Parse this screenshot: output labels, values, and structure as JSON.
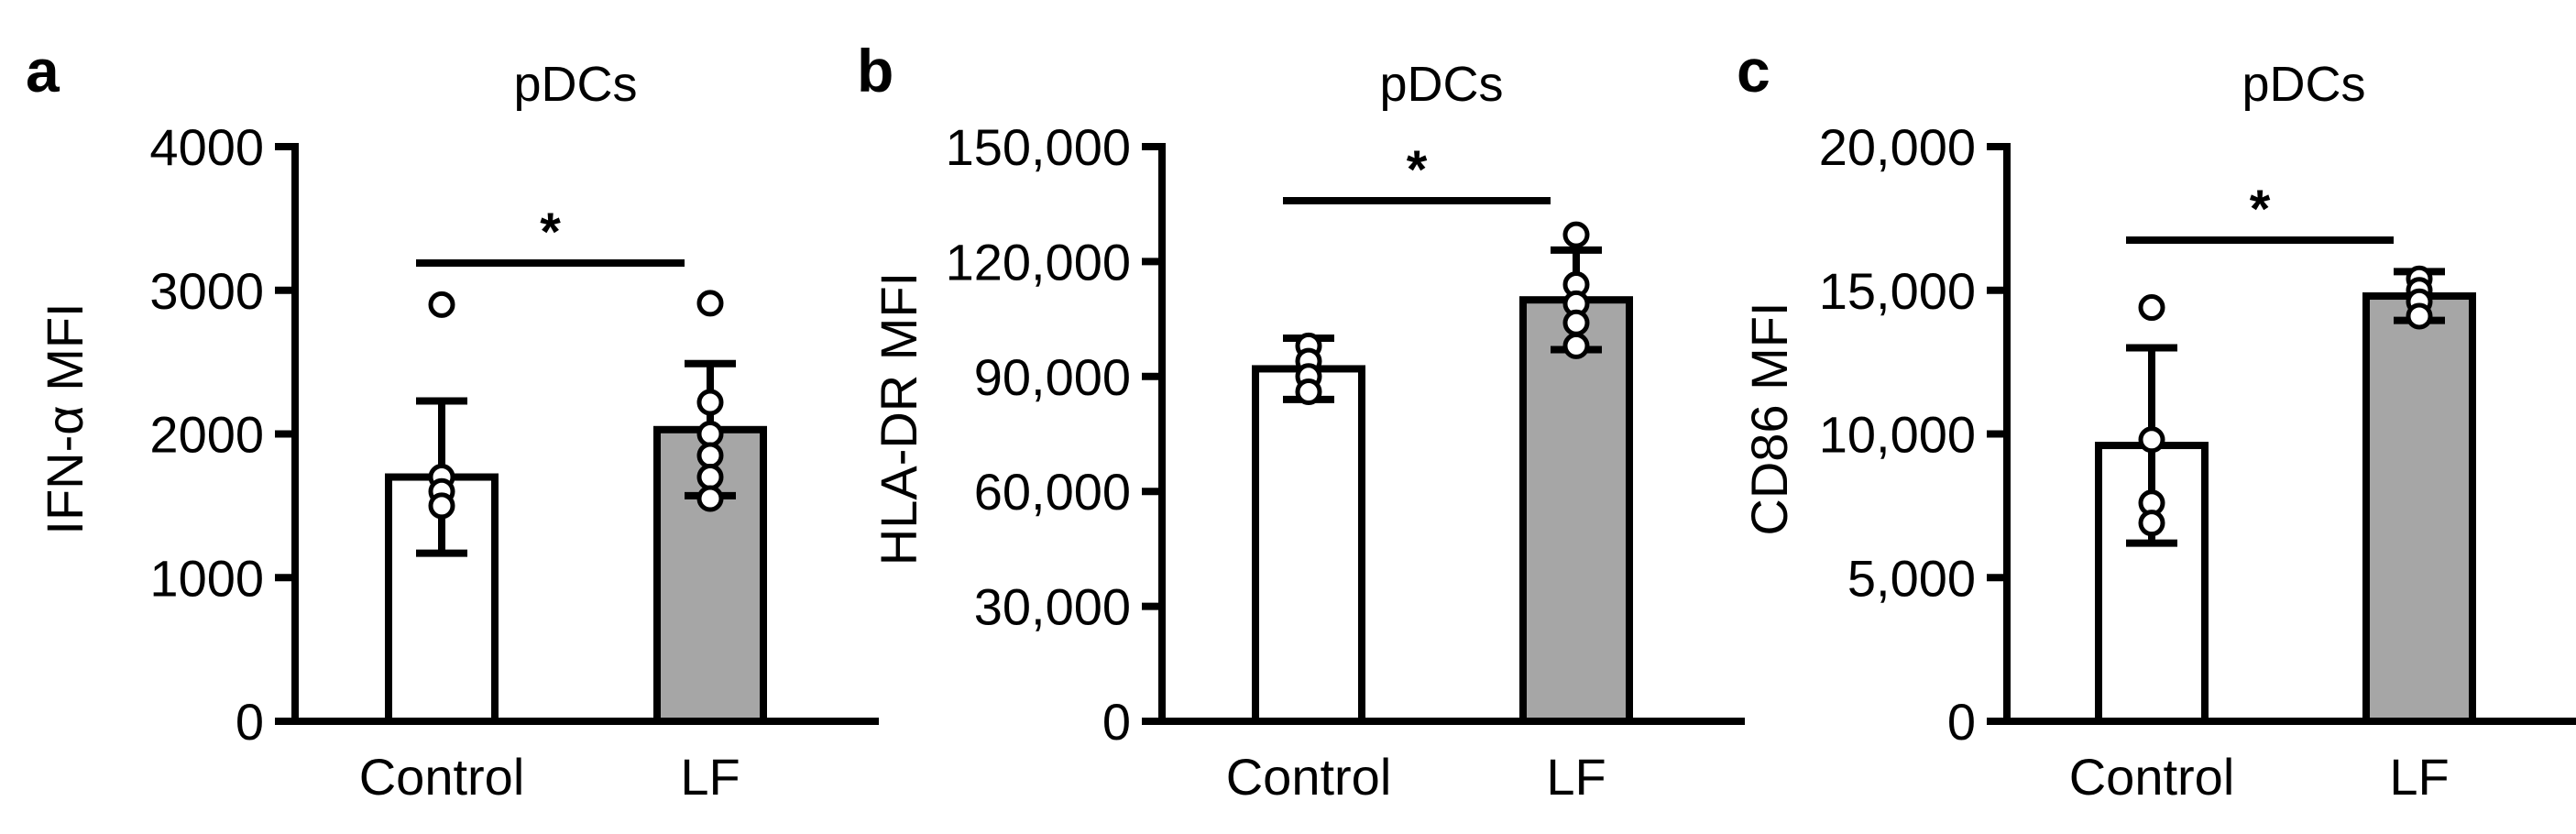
{
  "chart_data": [
    {
      "type": "bar",
      "panel_label": "a",
      "title": "pDCs",
      "ylabel": "IFN-α MFI",
      "categories": [
        "Control",
        "LF"
      ],
      "values": [
        1700,
        2030
      ],
      "errors": [
        530,
        460
      ],
      "points": [
        [
          2900,
          1700,
          1600,
          1500
        ],
        [
          2910,
          2220,
          2000,
          1850,
          1700,
          1550
        ]
      ],
      "bar_colors": [
        "#ffffff",
        "#a6a6a6"
      ],
      "ylim": [
        0,
        4000
      ],
      "yticks": [
        0,
        1000,
        2000,
        3000,
        4000
      ],
      "ytick_labels": [
        "0",
        "1000",
        "2000",
        "3000",
        "4000"
      ],
      "significance": "*"
    },
    {
      "type": "bar",
      "panel_label": "b",
      "title": "pDCs",
      "ylabel": "HLA-DR MFI",
      "categories": [
        "Control",
        "LF"
      ],
      "values": [
        92000,
        110000
      ],
      "errors": [
        8000,
        13000
      ],
      "points": [
        [
          98000,
          94000,
          90000,
          86000
        ],
        [
          127000,
          114000,
          109000,
          104000,
          98000
        ]
      ],
      "bar_colors": [
        "#ffffff",
        "#a6a6a6"
      ],
      "ylim": [
        0,
        150000
      ],
      "yticks": [
        0,
        30000,
        60000,
        90000,
        120000,
        150000
      ],
      "ytick_labels": [
        "0",
        "30,000",
        "60,000",
        "90,000",
        "120,000",
        "150,000"
      ],
      "significance": "*"
    },
    {
      "type": "bar",
      "panel_label": "c",
      "title": "pDCs",
      "ylabel": "CD86 MFI",
      "categories": [
        "Control",
        "LF"
      ],
      "values": [
        9600,
        14800
      ],
      "errors": [
        3400,
        850
      ],
      "points": [
        [
          14400,
          9800,
          7600,
          6900
        ],
        [
          15400,
          15000,
          14600,
          14100
        ]
      ],
      "bar_colors": [
        "#ffffff",
        "#a6a6a6"
      ],
      "ylim": [
        0,
        20000
      ],
      "yticks": [
        0,
        5000,
        10000,
        15000,
        20000
      ],
      "ytick_labels": [
        "0",
        "5,000",
        "10,000",
        "15,000",
        "20,000"
      ],
      "significance": "*"
    }
  ]
}
